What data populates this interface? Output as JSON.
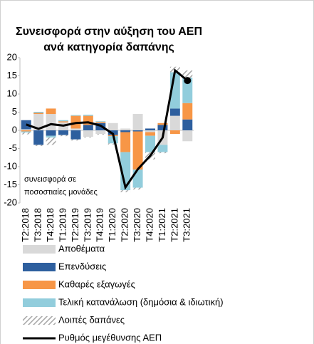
{
  "chart_data": {
    "type": "stacked_bar_line",
    "title": "Συνεισφορά στην αύξηση του ΑΕΠ ανά κατηγορία δαπάνης",
    "annotation": "συνεισφορά σε ποσοστιαίες μονάδες",
    "categories": [
      "T2:2018",
      "T3:2018",
      "T4:2018",
      "T1:2019",
      "T2:2019",
      "T3:2019",
      "T4:2019",
      "T1:2020",
      "T2:2020",
      "T3:2020",
      "T4:2020",
      "T1:2021",
      "T2:2021",
      "T3:2021"
    ],
    "ylim": [
      -20,
      20
    ],
    "yticks": [
      -20,
      -15,
      -10,
      -5,
      0,
      5,
      10,
      15,
      20
    ],
    "series": [
      {
        "name": "Αποθέματα",
        "color": "#d9d9d9",
        "values": [
          0.3,
          4.5,
          4.5,
          2.2,
          0.5,
          -1.8,
          -1,
          2,
          0.5,
          4.5,
          -0.5,
          -4,
          4,
          -3
        ]
      },
      {
        "name": "Επενδύσεις",
        "color": "#2e5f9e",
        "values": [
          2.5,
          -4,
          -1.5,
          -1.3,
          -2.5,
          1.5,
          2,
          -1.3,
          -0.5,
          -0.3,
          0.5,
          1.5,
          2,
          3
        ]
      },
      {
        "name": "Καθαρές εξαγωγές",
        "color": "#f79646",
        "values": [
          -0.3,
          0.3,
          1.5,
          0.3,
          3.5,
          2.5,
          0.3,
          -0.3,
          -5.5,
          -10.5,
          -1,
          0.5,
          -1,
          4.5
        ]
      },
      {
        "name": "Τελική κατανάλωση (δημόσια & ιδιωτική)",
        "color": "#92cddc",
        "values": [
          -0.3,
          0.3,
          -0.5,
          0.3,
          0.2,
          0.3,
          0.2,
          -2,
          -10.5,
          -5,
          -4.5,
          -2,
          10,
          7
        ]
      },
      {
        "name": "Λοιπές δαπάνες",
        "color": "#a6a6a6",
        "hatch": true,
        "values": [
          -0.5,
          -0.3,
          -2,
          -0.3,
          -0.3,
          -0.2,
          -0.2,
          -0.3,
          -0.5,
          -0.5,
          -2,
          -0.3,
          1.5,
          2
        ]
      },
      {
        "name": "Ρυθμός μεγέθυνσης ΑΕΠ",
        "color": "#000000",
        "kind": "line",
        "values": [
          1.6,
          0.4,
          1.7,
          1.3,
          2,
          2.2,
          1.3,
          -1,
          -15.7,
          -10.7,
          -7,
          -2,
          16.5,
          13.7
        ]
      }
    ]
  }
}
